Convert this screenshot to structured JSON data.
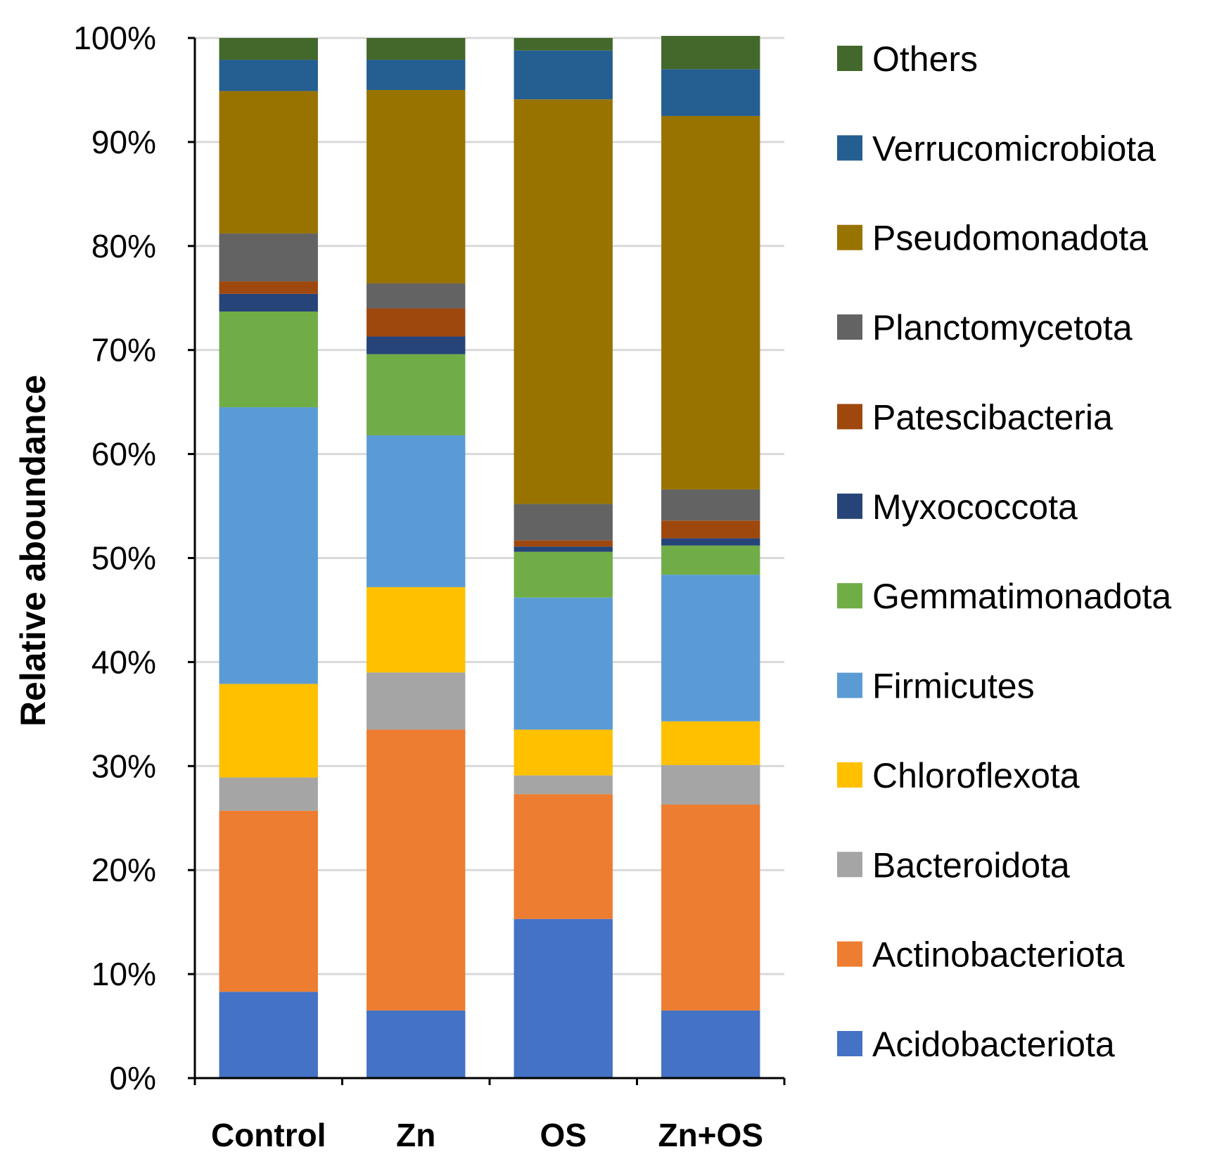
{
  "chart_data": {
    "type": "bar",
    "stacked": true,
    "percent": true,
    "title": "",
    "xlabel": "",
    "ylabel": "Relative aboundance",
    "ylim": [
      0,
      100
    ],
    "yticks": [
      "0%",
      "10%",
      "20%",
      "30%",
      "40%",
      "50%",
      "60%",
      "70%",
      "80%",
      "90%",
      "100%"
    ],
    "grid": "horizontal",
    "legend_position": "right",
    "categories": [
      "Control",
      "Zn",
      "OS",
      "Zn+OS"
    ],
    "series": [
      {
        "name": "Acidobacteriota",
        "color": "#4472C4",
        "values": [
          8.3,
          6.5,
          15.3,
          6.5
        ]
      },
      {
        "name": "Actinobacteriota",
        "color": "#ED7D31",
        "values": [
          17.4,
          27.0,
          12.0,
          19.8
        ]
      },
      {
        "name": "Bacteroidota",
        "color": "#A5A5A5",
        "values": [
          3.2,
          5.5,
          1.8,
          3.8
        ]
      },
      {
        "name": "Chloroflexota",
        "color": "#FFC000",
        "values": [
          9.0,
          8.2,
          4.4,
          4.2
        ]
      },
      {
        "name": "Firmicutes",
        "color": "#5B9BD5",
        "values": [
          26.6,
          14.6,
          12.7,
          14.1
        ]
      },
      {
        "name": "Gemmatimonadota",
        "color": "#70AD47",
        "values": [
          9.2,
          7.8,
          4.4,
          2.8
        ]
      },
      {
        "name": "Myxococcota",
        "color": "#264478",
        "values": [
          1.7,
          1.7,
          0.5,
          0.7
        ]
      },
      {
        "name": "Patescibacteria",
        "color": "#9E480E",
        "values": [
          1.2,
          2.7,
          0.6,
          1.7
        ]
      },
      {
        "name": "Planctomycetota",
        "color": "#636363",
        "values": [
          4.6,
          2.4,
          3.5,
          3.0
        ]
      },
      {
        "name": "Pseudomonadota",
        "color": "#997300",
        "values": [
          13.7,
          18.6,
          38.9,
          35.9
        ]
      },
      {
        "name": "Verrucomicrobiota",
        "color": "#255E91",
        "values": [
          3.0,
          2.9,
          4.7,
          4.5
        ]
      },
      {
        "name": "Others",
        "color": "#43682B",
        "values": [
          2.1,
          2.1,
          1.2,
          3.2
        ]
      }
    ]
  }
}
